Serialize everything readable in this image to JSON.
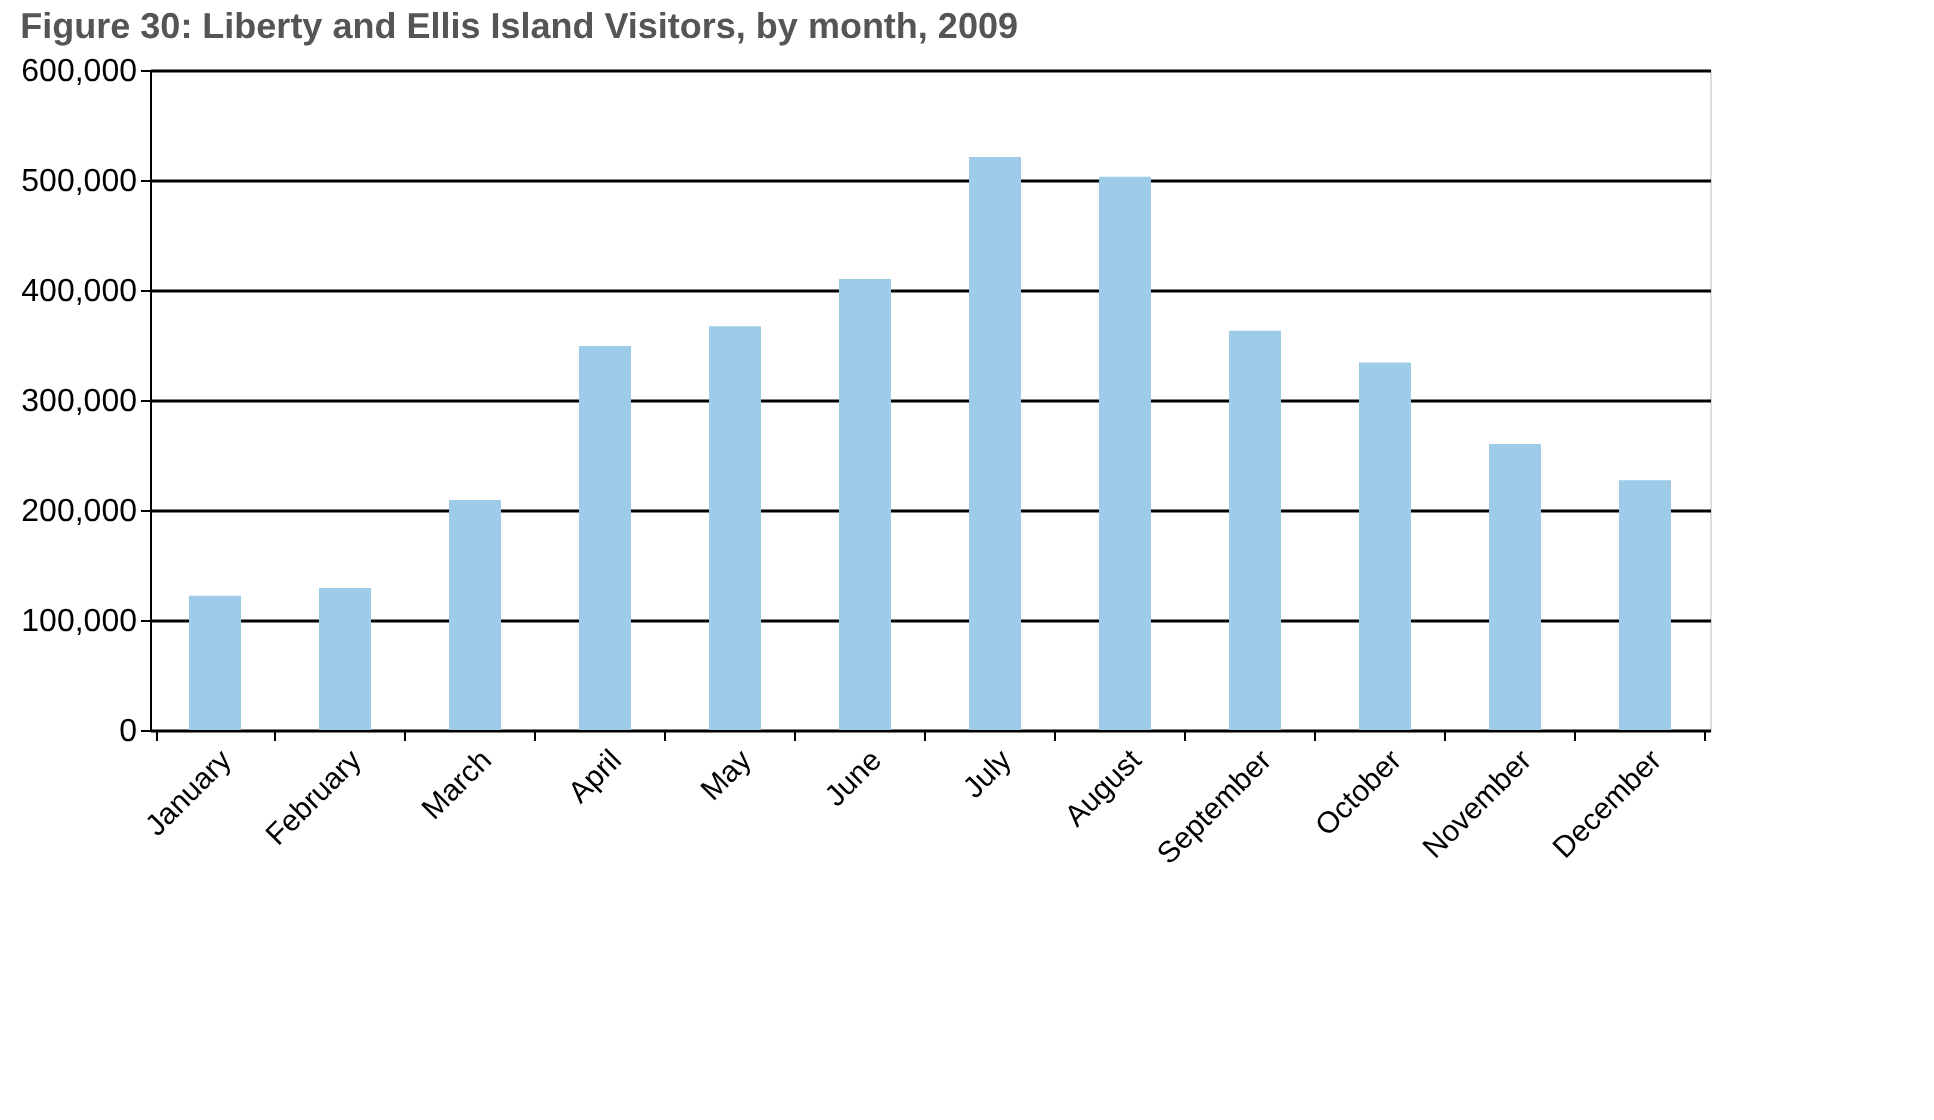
{
  "chart_data": {
    "type": "bar",
    "title": "Figure 30: Liberty and Ellis Island Visitors, by month, 2009",
    "categories": [
      "January",
      "February",
      "March",
      "April",
      "May",
      "June",
      "July",
      "August",
      "September",
      "October",
      "November",
      "December"
    ],
    "values": [
      122000,
      129000,
      209000,
      349000,
      367000,
      410000,
      521000,
      503000,
      363000,
      334000,
      260000,
      227000
    ],
    "color": "#9dcbe8",
    "ylim": [
      0,
      600000
    ],
    "yticks": [
      0,
      {
        "value": 100000,
        "label": "100,000"
      },
      {
        "value": 200000,
        "label": "200,000"
      },
      {
        "value": 300000,
        "label": "300,000"
      },
      {
        "value": 400000,
        "label": "400,000"
      },
      {
        "value": 500000,
        "label": "500,000"
      },
      {
        "value": 600000,
        "label": "600,000"
      }
    ],
    "grid": "y"
  }
}
